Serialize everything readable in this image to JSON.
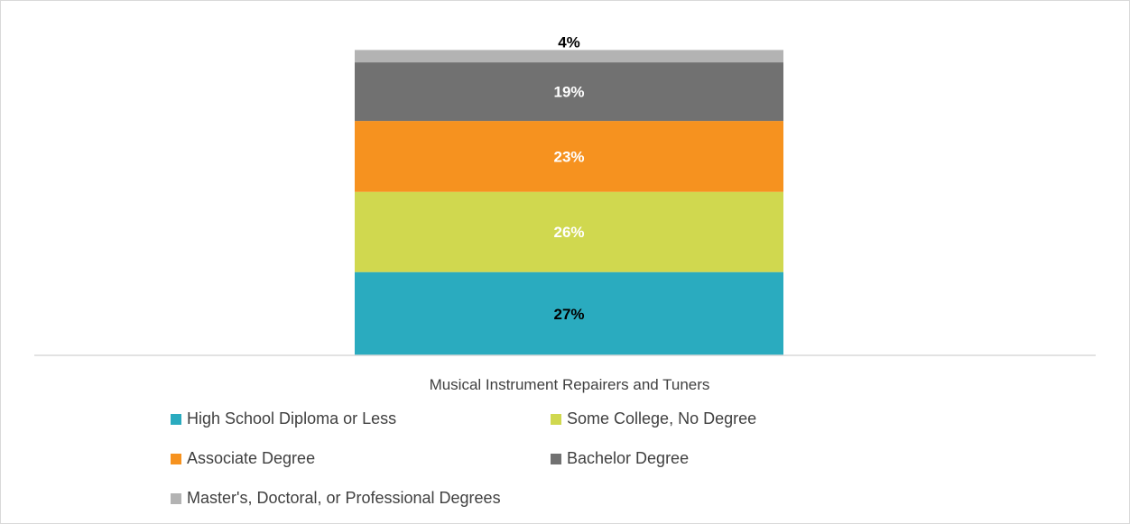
{
  "chart_data": {
    "type": "bar",
    "stacked": true,
    "orientation": "vertical",
    "categories": [
      "Musical Instrument Repairers and Tuners"
    ],
    "series": [
      {
        "name": "High School Diploma or Less",
        "values": [
          27
        ],
        "color": "#2aabbf",
        "label": "27%",
        "label_color": "#000000"
      },
      {
        "name": "Some College, No Degree",
        "values": [
          26
        ],
        "color": "#d0d84f",
        "label": "26%",
        "label_color": "#ffffff"
      },
      {
        "name": "Associate Degree",
        "values": [
          23
        ],
        "color": "#f6921f",
        "label": "23%",
        "label_color": "#ffffff"
      },
      {
        "name": "Bachelor Degree",
        "values": [
          19
        ],
        "color": "#717171",
        "label": "19%",
        "label_color": "#ffffff"
      },
      {
        "name": "Master's, Doctoral, or Professional Degrees",
        "values": [
          4
        ],
        "color": "#b3b3b3",
        "label": "4%",
        "label_color": "#000000"
      }
    ],
    "title": "",
    "xlabel": "",
    "ylabel": "",
    "ylim": [
      0,
      100
    ],
    "grid": false,
    "legend_position": "bottom"
  }
}
